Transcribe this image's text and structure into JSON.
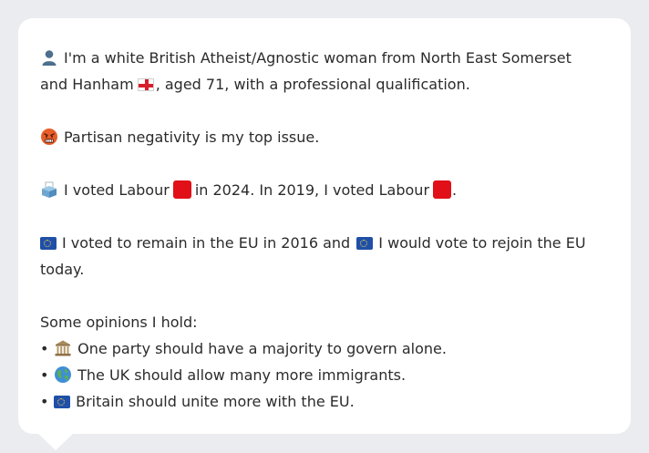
{
  "profile": {
    "line1": "I'm a white British Atheist/Agnostic woman from North East Somerset",
    "line2_before_flag": "and Hanham",
    "line2_after_flag": ", aged 71, with a professional qualification.",
    "top_issue": "Partisan negativity is my top issue.",
    "vote_part1": "I voted Labour",
    "vote_part2": "in 2024. In 2019, I voted Labour",
    "vote_part3": ".",
    "eu_part1": "I voted to remain in the EU in 2016 and",
    "eu_part2": "I would vote to rejoin the EU",
    "eu_line2": "today.",
    "opinions_heading": "Some opinions I hold:",
    "opinions": [
      "One party should have a majority to govern alone.",
      "The UK should allow many more immigrants.",
      "Britain should unite more with the EU."
    ],
    "bullet": "•",
    "icons": {
      "person": "person-icon",
      "angry": "angry-face-icon",
      "ballot": "ballot-box-icon",
      "eu": "eu-flag-icon",
      "england": "england-flag-icon",
      "labour": "labour-red-square-icon",
      "government": "government-building-icon",
      "globe": "globe-icon"
    }
  }
}
